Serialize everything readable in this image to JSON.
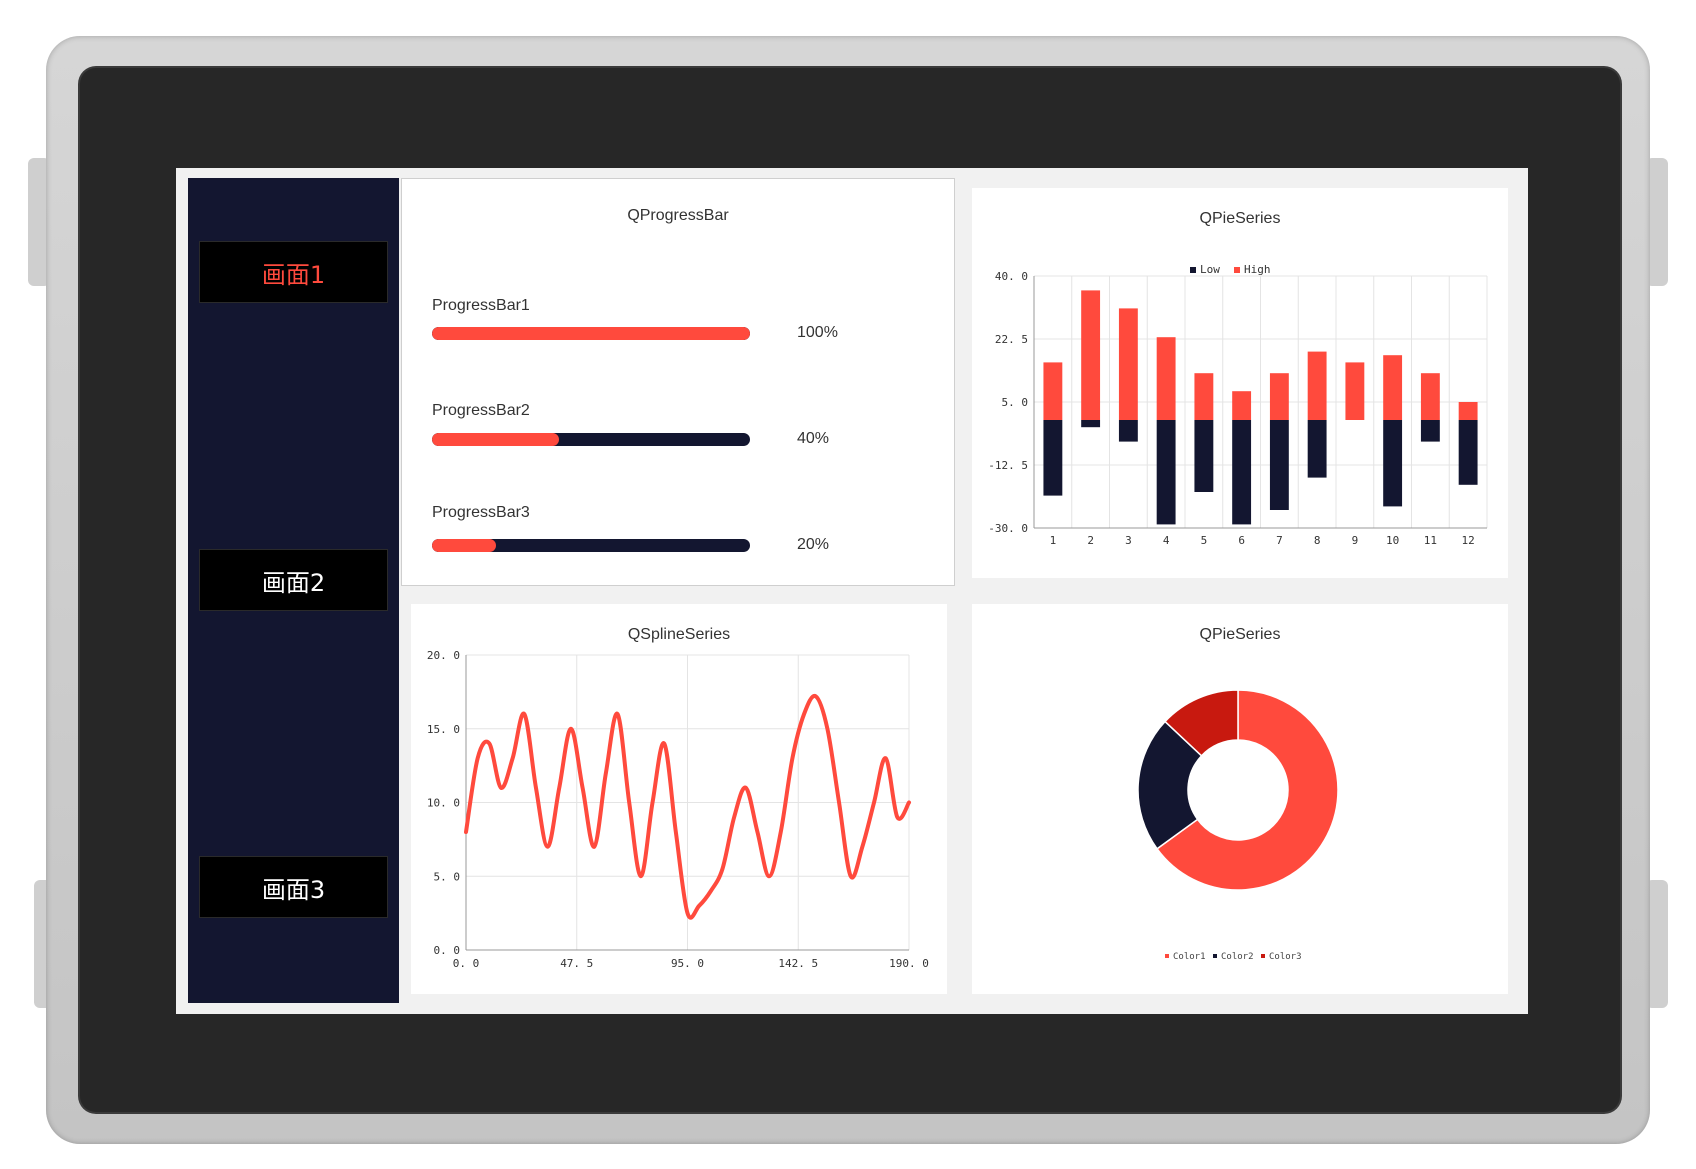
{
  "sidebar": {
    "items": [
      {
        "label": "画面1",
        "active": true
      },
      {
        "label": "画面2",
        "active": false
      },
      {
        "label": "画面3",
        "active": false
      }
    ]
  },
  "progress_panel": {
    "title": "QProgressBar",
    "bars": [
      {
        "label": "ProgressBar1",
        "value": 100,
        "percent_text": "100%"
      },
      {
        "label": "ProgressBar2",
        "value": 40,
        "percent_text": "40%"
      },
      {
        "label": "ProgressBar3",
        "value": 20,
        "percent_text": "20%"
      }
    ]
  },
  "colors": {
    "accent": "#ff4a3d",
    "dark": "#131630",
    "color3": "#c8190f"
  },
  "chart_data": [
    {
      "type": "bar",
      "title": "QPieSeries",
      "categories": [
        "1",
        "2",
        "3",
        "4",
        "5",
        "6",
        "7",
        "8",
        "9",
        "10",
        "11",
        "12"
      ],
      "series": [
        {
          "name": "Low",
          "values": [
            -21,
            -2,
            -6,
            -29,
            -20,
            -29,
            -25,
            -16,
            0,
            -24,
            -6,
            -18
          ]
        },
        {
          "name": "High",
          "values": [
            16,
            36,
            31,
            23,
            13,
            8,
            13,
            19,
            16,
            18,
            13,
            5
          ]
        }
      ],
      "ylim": [
        -30,
        40
      ],
      "yticks": [
        "40. 0",
        "22. 5",
        "5. 0",
        "-12. 5",
        "-30. 0"
      ],
      "ytick_values": [
        40,
        22.5,
        5,
        -12.5,
        -30
      ],
      "grid": true,
      "legend": "top-center"
    },
    {
      "type": "line",
      "title": "QSplineSeries",
      "x": [
        0,
        5,
        10,
        15,
        20,
        25,
        30,
        35,
        40,
        45,
        50,
        55,
        60,
        65,
        70,
        75,
        80,
        85,
        90,
        95,
        100,
        105,
        110,
        115,
        120,
        125,
        130,
        135,
        140,
        145,
        150,
        155,
        160,
        165,
        170,
        175,
        180,
        185,
        190
      ],
      "y": [
        8,
        13,
        14,
        11,
        13,
        16,
        11,
        7,
        11,
        15,
        11,
        7,
        12,
        16,
        10,
        5,
        10,
        14,
        8,
        2.5,
        3,
        4,
        5.5,
        9,
        11,
        8,
        5,
        8,
        13,
        16,
        17.2,
        15,
        10,
        5,
        7,
        10,
        13,
        9,
        10
      ],
      "xlim": [
        0,
        190
      ],
      "ylim": [
        0,
        20
      ],
      "xticks": [
        "0. 0",
        "47. 5",
        "95. 0",
        "142. 5",
        "190. 0"
      ],
      "xtick_values": [
        0,
        47.5,
        95,
        142.5,
        190
      ],
      "yticks": [
        "20. 0",
        "15. 0",
        "10. 0",
        "5. 0",
        "0. 0"
      ],
      "ytick_values": [
        20,
        15,
        10,
        5,
        0
      ],
      "grid": true
    },
    {
      "type": "pie",
      "title": "QPieSeries",
      "labels": [
        "Color1",
        "Color2",
        "Color3"
      ],
      "values": [
        65,
        22,
        13
      ],
      "colors": [
        "#ff4a3d",
        "#131630",
        "#c8190f"
      ],
      "hole": 0.5,
      "legend": "bottom-center"
    }
  ]
}
